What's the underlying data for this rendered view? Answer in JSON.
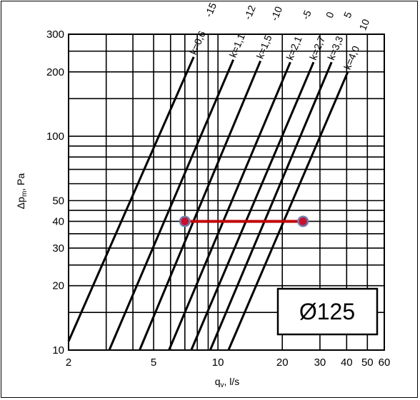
{
  "chart_data": {
    "type": "line",
    "title": "Ø125",
    "xlabel": "q_v, l/s",
    "xlabel_main": "q",
    "xlabel_sub": "v",
    "xlabel_rest": ", l/s",
    "ylabel": "Δp_m, Pa",
    "ylabel_main": "Δp",
    "ylabel_sub": "m",
    "ylabel_rest": ", Pa",
    "x_scale": "log",
    "y_scale": "log",
    "xlim": [
      2,
      60
    ],
    "ylim": [
      10,
      300
    ],
    "grid": true,
    "x_ticks": [
      2,
      5,
      10,
      20,
      30,
      40,
      50,
      60
    ],
    "y_ticks": [
      10,
      20,
      30,
      40,
      50,
      100,
      200,
      300
    ],
    "x_grid": [
      2,
      3,
      4,
      5,
      6,
      7,
      8,
      9,
      10,
      20,
      30,
      40,
      50,
      60
    ],
    "y_grid": [
      10,
      15,
      20,
      25,
      30,
      35,
      40,
      45,
      50,
      60,
      70,
      80,
      90,
      100,
      150,
      200,
      250,
      300
    ],
    "series": [
      {
        "name": "k=0,6",
        "top": "-15",
        "x": [
          2.0,
          7.7
        ],
        "y": [
          11,
          235
        ]
      },
      {
        "name": "k=1,1",
        "top": "-12",
        "x": [
          3.1,
          11.8
        ],
        "y": [
          10,
          228
        ]
      },
      {
        "name": "k=1,5",
        "top": "-10",
        "x": [
          4.3,
          15.8
        ],
        "y": [
          10,
          225
        ]
      },
      {
        "name": "k=2,1",
        "top": "-5",
        "x": [
          5.9,
          21.8
        ],
        "y": [
          10,
          222
        ]
      },
      {
        "name": "k=2,7",
        "top": "0",
        "x": [
          7.5,
          28.0
        ],
        "y": [
          10,
          222
        ]
      },
      {
        "name": "k=3,3",
        "top": "5",
        "x": [
          9.2,
          34.0
        ],
        "y": [
          10,
          222
        ]
      },
      {
        "name": "k=4,0",
        "top": "10",
        "x": [
          11.2,
          40.5
        ],
        "y": [
          10,
          200
        ]
      }
    ],
    "marker_line": {
      "x": [
        7,
        25
      ],
      "y": [
        40,
        40
      ],
      "color": "#c00000",
      "point_color": "#c8102e",
      "ring_color": "#7080b0"
    }
  }
}
